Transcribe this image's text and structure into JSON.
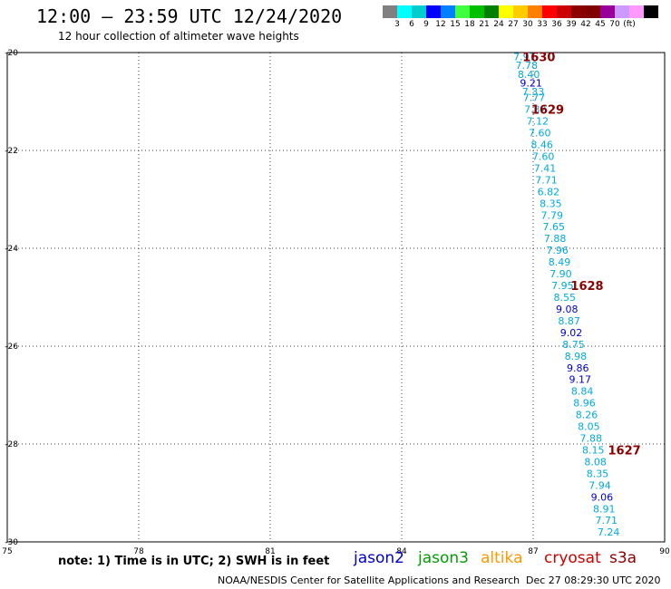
{
  "header": {
    "title": "12:00 – 23:59 UTC 12/24/2020",
    "subtitle": "12 hour collection of altimeter wave heights"
  },
  "colorbar": {
    "colors": [
      "#808080",
      "#00ffff",
      "#00cdcd",
      "#0000ff",
      "#0080ff",
      "#40ff40",
      "#00c000",
      "#008000",
      "#ffff00",
      "#ffcc00",
      "#ff8000",
      "#ff0000",
      "#cc0000",
      "#8b0000",
      "#800000",
      "#990099",
      "#cc99ff",
      "#ff99ff",
      "#000000"
    ],
    "labels": [
      "3",
      "6",
      "9",
      "12",
      "15",
      "18",
      "21",
      "24",
      "27",
      "30",
      "33",
      "36",
      "39",
      "42",
      "45",
      "70",
      "(ft)"
    ]
  },
  "footer": {
    "note": "note: 1) Time is in UTC; 2) SWH is in feet",
    "satellites": [
      {
        "name": "jason2",
        "color": "#0000cc"
      },
      {
        "name": "jason3",
        "color": "#00a000"
      },
      {
        "name": "altika",
        "color": "#ff9900"
      },
      {
        "name": "cryosat",
        "color": "#cc0000"
      },
      {
        "name": "s3a",
        "color": "#8b0000"
      }
    ],
    "credit": "NOAA/NESDIS Center for Satellite Applications and Research",
    "timestamp": "Dec 27 08:29:30 UTC 2020"
  },
  "chart_data": {
    "type": "scatter",
    "xlim": [
      75,
      90
    ],
    "ylim": [
      -30,
      -20
    ],
    "xticks": [
      75,
      78,
      81,
      84,
      87,
      90
    ],
    "yticks": [
      -20,
      -22,
      -24,
      -26,
      -28,
      -30
    ],
    "grid": true,
    "points": [
      {
        "x": 86.8,
        "y": -20.08,
        "label": "7.97",
        "color": "#00aadd"
      },
      {
        "x": 86.85,
        "y": -20.26,
        "label": "7.78",
        "color": "#00aadd"
      },
      {
        "x": 86.9,
        "y": -20.44,
        "label": "8.40",
        "color": "#00aadd"
      },
      {
        "x": 86.95,
        "y": -20.62,
        "label": "9.21",
        "color": "#0000cc"
      },
      {
        "x": 87.0,
        "y": -20.8,
        "label": "7.33",
        "color": "#00aadd"
      },
      {
        "x": 87.02,
        "y": -20.92,
        "label": "7.77",
        "color": "#00aadd"
      },
      {
        "x": 87.05,
        "y": -21.16,
        "label": "7.32",
        "color": "#00aadd"
      },
      {
        "x": 87.1,
        "y": -21.4,
        "label": "7.12",
        "color": "#00aadd"
      },
      {
        "x": 87.15,
        "y": -21.64,
        "label": "7.60",
        "color": "#00aadd"
      },
      {
        "x": 87.2,
        "y": -21.88,
        "label": "8.46",
        "color": "#00aadd"
      },
      {
        "x": 87.23,
        "y": -22.12,
        "label": "7.60",
        "color": "#00aadd"
      },
      {
        "x": 87.27,
        "y": -22.36,
        "label": "7.41",
        "color": "#00aadd"
      },
      {
        "x": 87.3,
        "y": -22.6,
        "label": "7.71",
        "color": "#00aadd"
      },
      {
        "x": 87.35,
        "y": -22.84,
        "label": "6.82",
        "color": "#00aadd"
      },
      {
        "x": 87.4,
        "y": -23.08,
        "label": "8.35",
        "color": "#00aadd"
      },
      {
        "x": 87.43,
        "y": -23.32,
        "label": "7.79",
        "color": "#00aadd"
      },
      {
        "x": 87.47,
        "y": -23.56,
        "label": "7.65",
        "color": "#00aadd"
      },
      {
        "x": 87.5,
        "y": -23.8,
        "label": "7.88",
        "color": "#00aadd"
      },
      {
        "x": 87.55,
        "y": -24.04,
        "label": "7.96",
        "color": "#00aadd"
      },
      {
        "x": 87.6,
        "y": -24.28,
        "label": "8.49",
        "color": "#00aadd"
      },
      {
        "x": 87.63,
        "y": -24.52,
        "label": "7.90",
        "color": "#00aadd"
      },
      {
        "x": 87.67,
        "y": -24.76,
        "label": "7.95",
        "color": "#00aadd"
      },
      {
        "x": 87.72,
        "y": -25.0,
        "label": "8.55",
        "color": "#00aadd"
      },
      {
        "x": 87.77,
        "y": -25.24,
        "label": "9.08",
        "color": "#0000cc"
      },
      {
        "x": 87.82,
        "y": -25.48,
        "label": "8.87",
        "color": "#00aadd"
      },
      {
        "x": 87.87,
        "y": -25.72,
        "label": "9.02",
        "color": "#0000cc"
      },
      {
        "x": 87.92,
        "y": -25.96,
        "label": "8.75",
        "color": "#00aadd"
      },
      {
        "x": 87.97,
        "y": -26.2,
        "label": "8.98",
        "color": "#00aadd"
      },
      {
        "x": 88.02,
        "y": -26.44,
        "label": "9.86",
        "color": "#0000cc"
      },
      {
        "x": 88.07,
        "y": -26.68,
        "label": "9.17",
        "color": "#0000cc"
      },
      {
        "x": 88.12,
        "y": -26.92,
        "label": "8.84",
        "color": "#00aadd"
      },
      {
        "x": 88.17,
        "y": -27.16,
        "label": "8.96",
        "color": "#00aadd"
      },
      {
        "x": 88.22,
        "y": -27.4,
        "label": "8.26",
        "color": "#00aadd"
      },
      {
        "x": 88.27,
        "y": -27.64,
        "label": "8.05",
        "color": "#00aadd"
      },
      {
        "x": 88.32,
        "y": -27.88,
        "label": "7.88",
        "color": "#00aadd"
      },
      {
        "x": 88.37,
        "y": -28.12,
        "label": "8.15",
        "color": "#00aadd"
      },
      {
        "x": 88.42,
        "y": -28.36,
        "label": "8.08",
        "color": "#00aadd"
      },
      {
        "x": 88.47,
        "y": -28.6,
        "label": "8.35",
        "color": "#00aadd"
      },
      {
        "x": 88.52,
        "y": -28.84,
        "label": "7.94",
        "color": "#00aadd"
      },
      {
        "x": 88.57,
        "y": -29.08,
        "label": "9.06",
        "color": "#0000cc"
      },
      {
        "x": 88.62,
        "y": -29.32,
        "label": "8.91",
        "color": "#00aadd"
      },
      {
        "x": 88.67,
        "y": -29.56,
        "label": "7.71",
        "color": "#00aadd"
      },
      {
        "x": 88.72,
        "y": -29.8,
        "label": "7.24",
        "color": "#00aadd"
      }
    ],
    "annotations": [
      {
        "x": 86.55,
        "y": -20.08,
        "label": "1630",
        "color": "#8b0000"
      },
      {
        "x": 86.75,
        "y": -21.16,
        "label": "1629",
        "color": "#8b0000"
      },
      {
        "x": 87.65,
        "y": -24.76,
        "label": "1628",
        "color": "#8b0000"
      },
      {
        "x": 88.5,
        "y": -28.12,
        "label": "1627",
        "color": "#8b0000"
      }
    ]
  }
}
